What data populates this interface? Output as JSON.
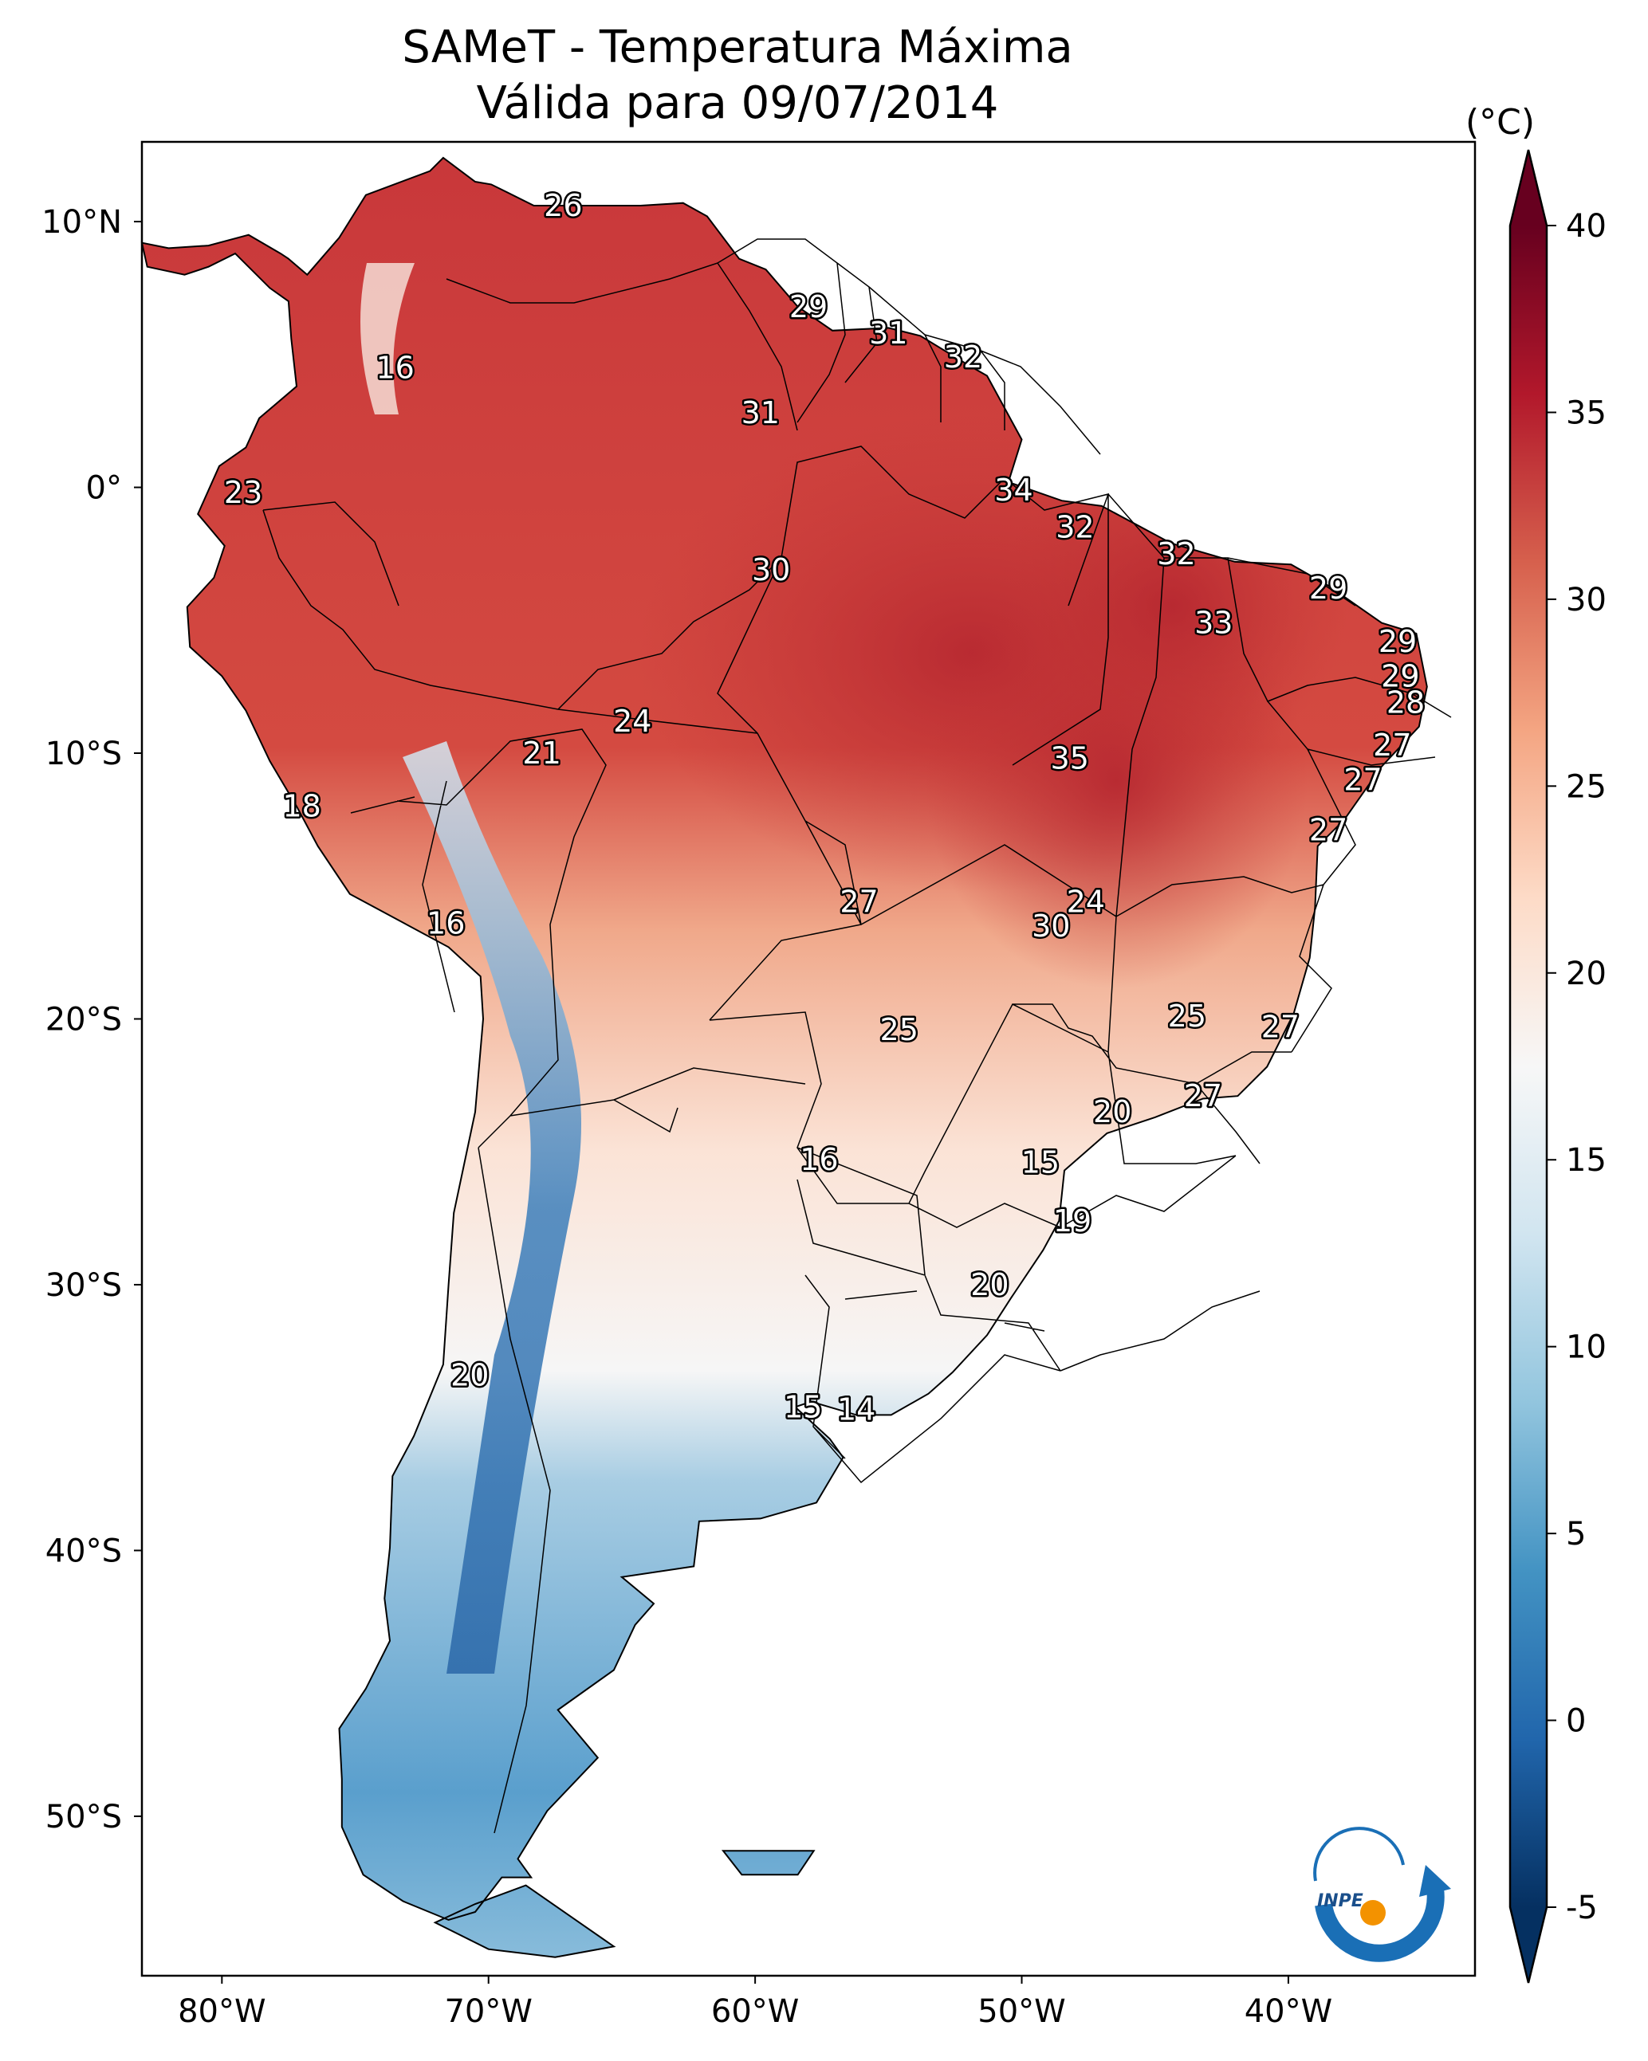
{
  "title": {
    "line1": "SAMeT - Temperatura Máxima",
    "line2": "Válida para 09/07/2014"
  },
  "map": {
    "region": "South America",
    "variable": "maximum temperature",
    "lon_range": [
      -83,
      -33
    ],
    "lat_range": [
      -56,
      13
    ],
    "lon_ticks": [
      "80°W",
      "70°W",
      "60°W",
      "50°W",
      "40°W"
    ],
    "lat_ticks": [
      "10°N",
      "0°",
      "10°S",
      "20°S",
      "30°S",
      "40°S",
      "50°S"
    ],
    "station_values": [
      {
        "lon": -67.2,
        "lat": 10.6,
        "value": "26"
      },
      {
        "lon": -73.5,
        "lat": 4.5,
        "value": "16"
      },
      {
        "lon": -58.0,
        "lat": 6.8,
        "value": "29"
      },
      {
        "lon": -55.0,
        "lat": 5.8,
        "value": "31"
      },
      {
        "lon": -52.2,
        "lat": 4.9,
        "value": "32"
      },
      {
        "lon": -59.8,
        "lat": 2.8,
        "value": "31"
      },
      {
        "lon": -79.2,
        "lat": -0.2,
        "value": "23"
      },
      {
        "lon": -50.3,
        "lat": -0.1,
        "value": "34"
      },
      {
        "lon": -48.0,
        "lat": -1.5,
        "value": "32"
      },
      {
        "lon": -59.4,
        "lat": -3.1,
        "value": "30"
      },
      {
        "lon": -44.2,
        "lat": -2.5,
        "value": "32"
      },
      {
        "lon": -38.5,
        "lat": -3.8,
        "value": "29"
      },
      {
        "lon": -42.8,
        "lat": -5.1,
        "value": "33"
      },
      {
        "lon": -35.9,
        "lat": -5.8,
        "value": "29"
      },
      {
        "lon": -35.8,
        "lat": -7.1,
        "value": "29"
      },
      {
        "lon": -35.6,
        "lat": -8.1,
        "value": "28"
      },
      {
        "lon": -64.6,
        "lat": -8.8,
        "value": "24"
      },
      {
        "lon": -68.0,
        "lat": -10.0,
        "value": "21"
      },
      {
        "lon": -36.1,
        "lat": -9.7,
        "value": "27"
      },
      {
        "lon": -48.2,
        "lat": -10.2,
        "value": "35"
      },
      {
        "lon": -37.2,
        "lat": -11.0,
        "value": "27"
      },
      {
        "lon": -77.0,
        "lat": -12.0,
        "value": "18"
      },
      {
        "lon": -38.5,
        "lat": -12.9,
        "value": "27"
      },
      {
        "lon": -56.1,
        "lat": -15.6,
        "value": "27"
      },
      {
        "lon": -47.6,
        "lat": -15.6,
        "value": "24"
      },
      {
        "lon": -48.9,
        "lat": -16.5,
        "value": "30"
      },
      {
        "lon": -71.6,
        "lat": -16.4,
        "value": "16"
      },
      {
        "lon": -43.8,
        "lat": -19.9,
        "value": "25"
      },
      {
        "lon": -54.6,
        "lat": -20.4,
        "value": "25"
      },
      {
        "lon": -40.3,
        "lat": -20.3,
        "value": "27"
      },
      {
        "lon": -43.2,
        "lat": -22.9,
        "value": "27"
      },
      {
        "lon": -46.6,
        "lat": -23.5,
        "value": "20"
      },
      {
        "lon": -57.6,
        "lat": -25.3,
        "value": "16"
      },
      {
        "lon": -49.3,
        "lat": -25.4,
        "value": "15"
      },
      {
        "lon": -48.1,
        "lat": -27.6,
        "value": "19"
      },
      {
        "lon": -51.2,
        "lat": -30.0,
        "value": "20"
      },
      {
        "lon": -70.7,
        "lat": -33.4,
        "value": "20"
      },
      {
        "lon": -58.2,
        "lat": -34.6,
        "value": "15"
      },
      {
        "lon": -56.2,
        "lat": -34.7,
        "value": "14"
      }
    ]
  },
  "colorbar": {
    "unit": "(°C)",
    "min": -5,
    "max": 40,
    "tick_values": [
      -5,
      0,
      5,
      10,
      15,
      20,
      25,
      30,
      35,
      40
    ],
    "tick_labels": [
      "-5",
      "0",
      "5",
      "10",
      "15",
      "20",
      "25",
      "30",
      "35",
      "40"
    ],
    "colormap": "RdBu_r",
    "colors": [
      "#053061",
      "#2166ac",
      "#4393c3",
      "#92c5de",
      "#d1e5f0",
      "#f7f7f7",
      "#fddbc7",
      "#f4a582",
      "#d6604d",
      "#b2182b",
      "#67001f"
    ]
  },
  "logo": {
    "text": "INPE",
    "arrow_color": "#1a6fb6",
    "dot_color": "#f39200"
  }
}
